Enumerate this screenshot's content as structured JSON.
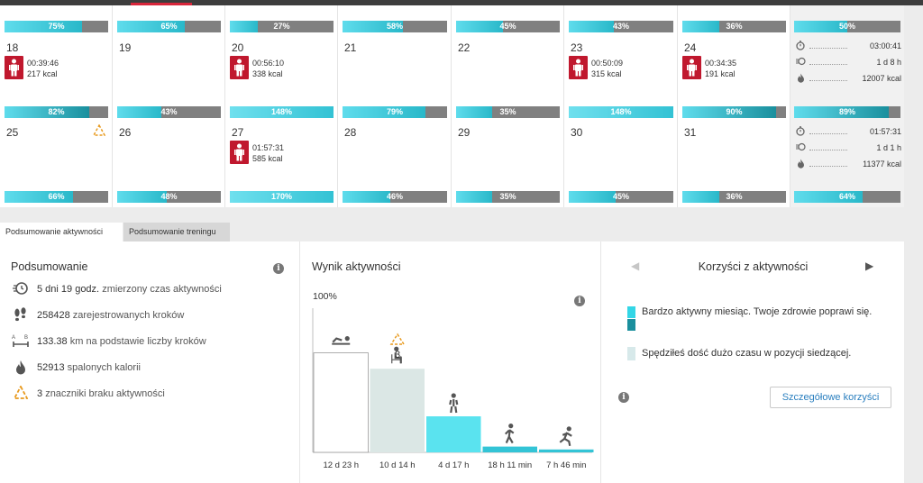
{
  "calendar": {
    "top_bars": [
      {
        "pct": "75%",
        "value": 75
      },
      {
        "pct": "65%",
        "value": 65
      },
      {
        "pct": "27%",
        "value": 27
      },
      {
        "pct": "58%",
        "value": 58
      },
      {
        "pct": "45%",
        "value": 45
      },
      {
        "pct": "43%",
        "value": 43
      },
      {
        "pct": "36%",
        "value": 36
      }
    ],
    "week1": {
      "days": [
        {
          "num": "18",
          "workout": true,
          "time": "00:39:46",
          "kcal": "217 kcal",
          "warning": false
        },
        {
          "num": "19",
          "workout": false,
          "warning": false
        },
        {
          "num": "20",
          "workout": true,
          "time": "00:56:10",
          "kcal": "338 kcal",
          "warning": false
        },
        {
          "num": "21",
          "workout": false,
          "warning": false
        },
        {
          "num": "22",
          "workout": false,
          "warning": false
        },
        {
          "num": "23",
          "workout": true,
          "time": "00:50:09",
          "kcal": "315 kcal",
          "warning": false
        },
        {
          "num": "24",
          "workout": true,
          "time": "00:34:35",
          "kcal": "191 kcal",
          "warning": false
        }
      ],
      "bars": [
        {
          "pct": "82%",
          "value": 82
        },
        {
          "pct": "43%",
          "value": 43
        },
        {
          "pct": "148%",
          "value": 148
        },
        {
          "pct": "79%",
          "value": 79
        },
        {
          "pct": "35%",
          "value": 35
        },
        {
          "pct": "148%",
          "value": 148
        },
        {
          "pct": "90%",
          "value": 90
        }
      ]
    },
    "week2": {
      "days": [
        {
          "num": "25",
          "workout": false,
          "warning": true
        },
        {
          "num": "26",
          "workout": false,
          "warning": false
        },
        {
          "num": "27",
          "workout": true,
          "time": "01:57:31",
          "kcal": "585 kcal",
          "warning": false
        },
        {
          "num": "28",
          "workout": false,
          "warning": false
        },
        {
          "num": "29",
          "workout": false,
          "warning": false
        },
        {
          "num": "30",
          "workout": false,
          "warning": false
        },
        {
          "num": "31",
          "workout": false,
          "warning": false
        }
      ],
      "bars": [
        {
          "pct": "66%",
          "value": 66
        },
        {
          "pct": "48%",
          "value": 48
        },
        {
          "pct": "170%",
          "value": 170
        },
        {
          "pct": "46%",
          "value": 46
        },
        {
          "pct": "35%",
          "value": 35
        },
        {
          "pct": "45%",
          "value": 45
        },
        {
          "pct": "36%",
          "value": 36
        }
      ]
    },
    "summary": {
      "bar_top": {
        "pct": "50%",
        "value": 50
      },
      "week1": {
        "time": "03:00:41",
        "active": "1 d 8 h",
        "kcal": "12007 kcal"
      },
      "bar_mid": {
        "pct": "89%",
        "value": 89
      },
      "week2": {
        "time": "01:57:31",
        "active": "1 d 1 h",
        "kcal": "11377 kcal"
      },
      "bar_bottom": {
        "pct": "64%",
        "value": 64
      }
    }
  },
  "tabs": [
    "Podsumowanie aktywności",
    "Podsumowanie treningu"
  ],
  "summary_panel": {
    "title": "Podsumowanie",
    "rows": [
      {
        "value": "5 dni 19 godz.",
        "text": "zmierzony czas aktywności"
      },
      {
        "value": "258428",
        "text": "zarejestrowanych kroków"
      },
      {
        "value": "133.38",
        "text": "km na podstawie liczby kroków"
      },
      {
        "value": "52913",
        "text": "spalonych kalorii"
      },
      {
        "value": "3",
        "text": "znaczniki braku aktywności"
      }
    ]
  },
  "activity_panel": {
    "title": "Wynik aktywności",
    "y_label": "100%",
    "warning_count": "3"
  },
  "chart_data": {
    "type": "bar",
    "categories": [
      "12 d 23 h",
      "10 d 14 h",
      "4 d 17 h",
      "18 h 11 min",
      "7 h 46 min"
    ],
    "values": [
      69,
      58,
      25,
      4,
      2
    ],
    "ylim": [
      0,
      100
    ],
    "ylabel": "100%",
    "colors": [
      "#ffffff",
      "#dbe7e5",
      "#5ae3ef",
      "#33c4d6",
      "#33c4d6"
    ],
    "icons": [
      "lying-icon",
      "sitting-icon",
      "standing-icon",
      "walking-icon",
      "running-icon"
    ]
  },
  "benefits_panel": {
    "title": "Korzyści z aktywności",
    "legend": [
      {
        "text": "Bardzo aktywny miesiąc. Twoje zdrowie poprawi się."
      },
      {
        "text": "Spędziłeś dość dużo czasu w pozycji siedzącej."
      }
    ],
    "button": "Szczegółowe korzyści"
  },
  "colors": {
    "accent": "#2a7fbf",
    "workout": "#c0182e",
    "bar_fill": "#29b8c9",
    "bar_bg": "#808080",
    "warning": "#e89a1e"
  }
}
